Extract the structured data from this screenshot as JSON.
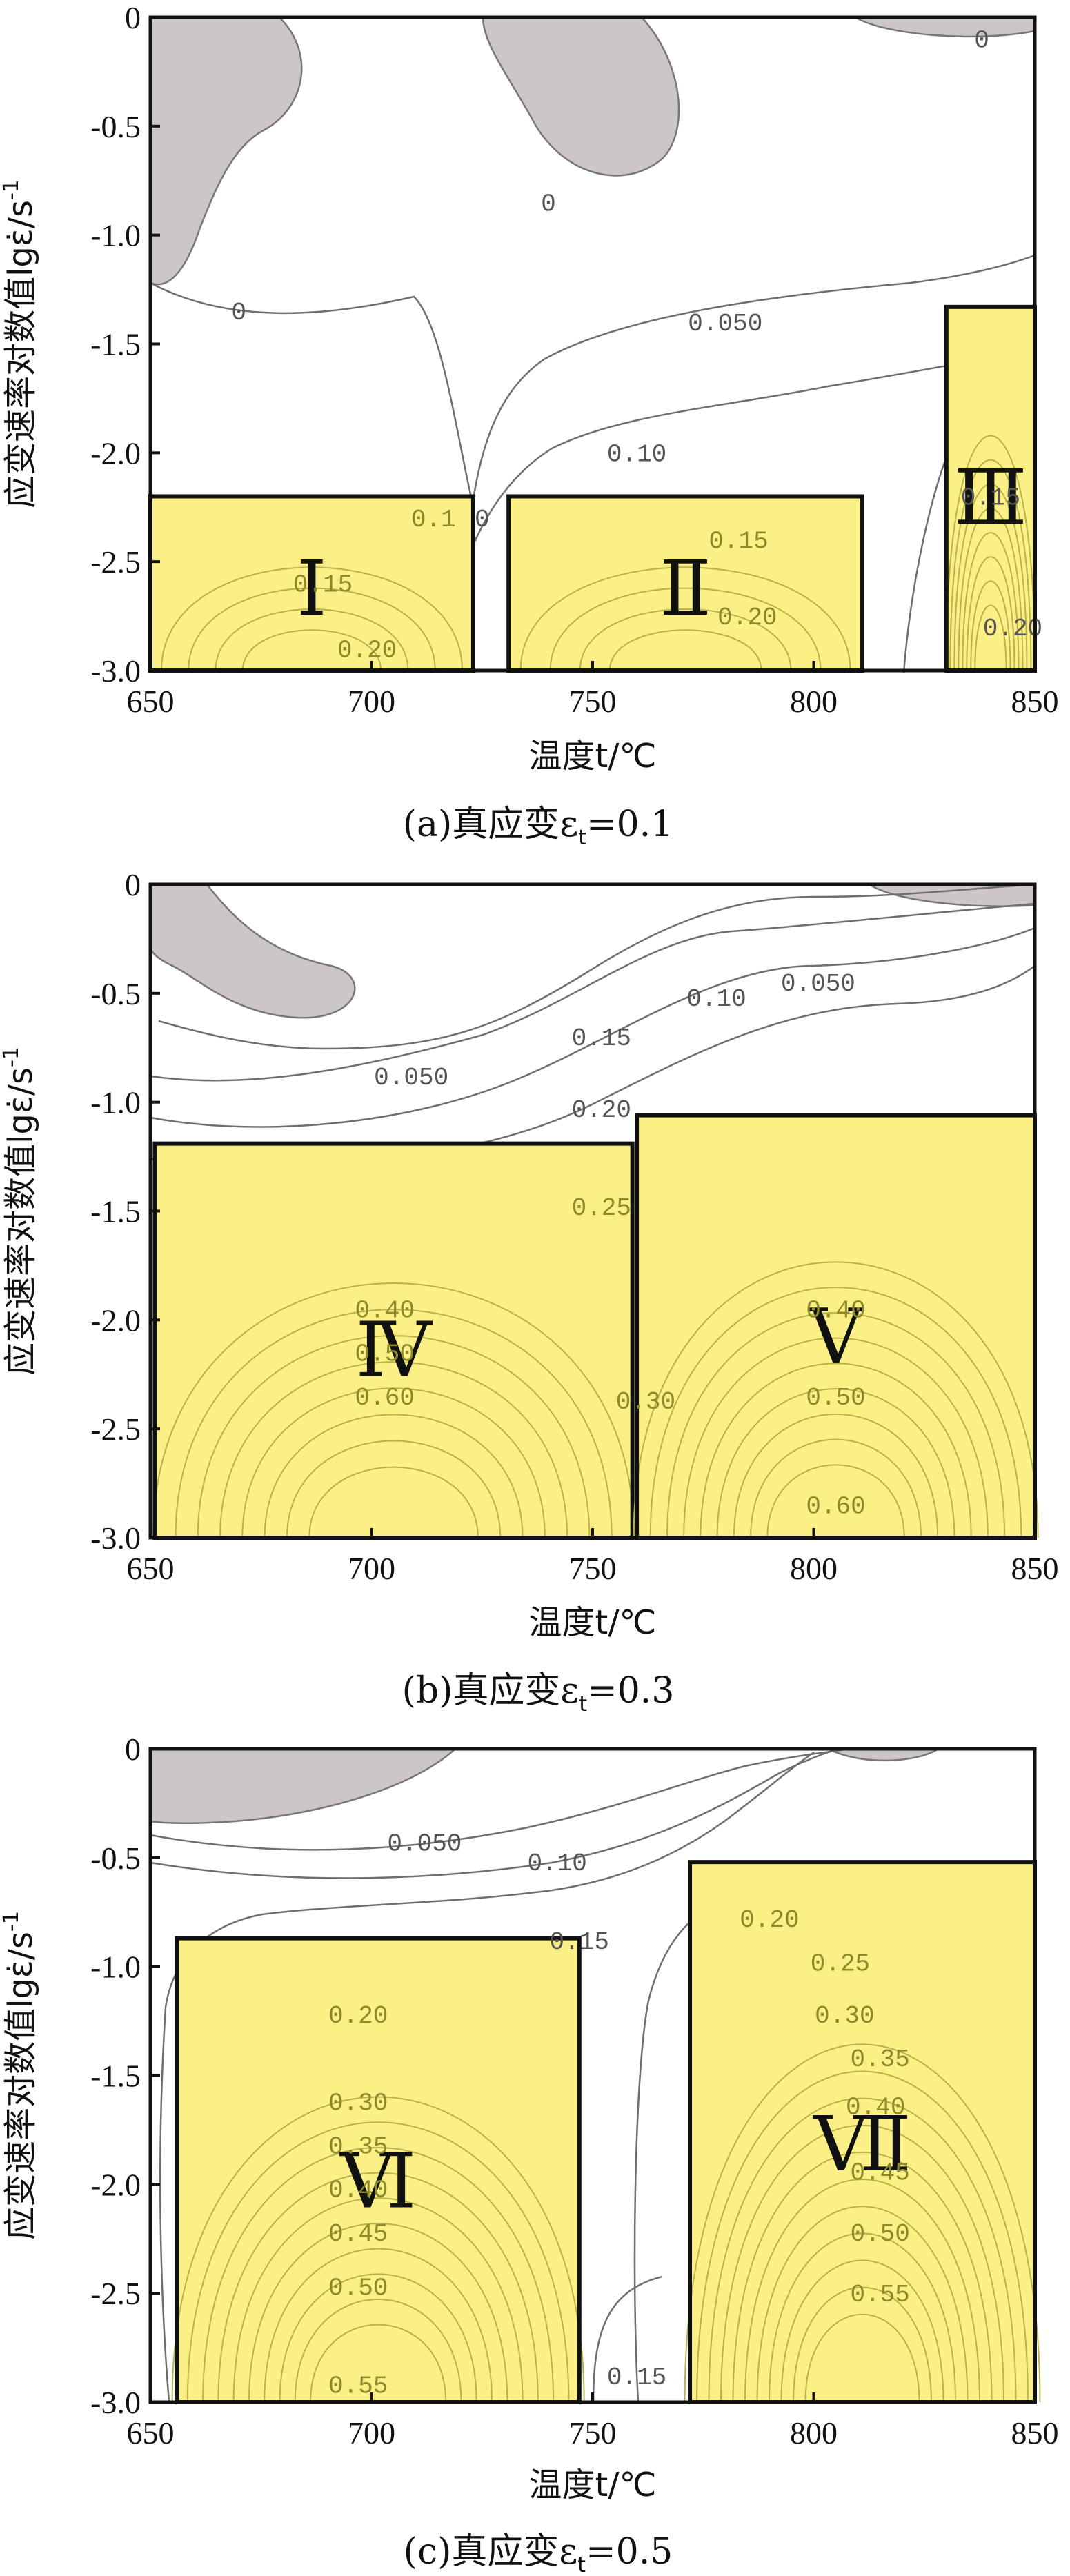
{
  "chart_data": [
    {
      "type": "contour",
      "caption": "(a)真应变ε",
      "caption_sub": "t",
      "caption_value": "=0.1",
      "xlabel": "温度t/℃",
      "ylabel": "应变速率对数值lgε̇/s",
      "ylabel_sup": "-1",
      "xlim": [
        650,
        850
      ],
      "ylim": [
        -3.0,
        0
      ],
      "xticks": [
        "650",
        "700",
        "750",
        "800",
        "850"
      ],
      "yticks": [
        "0",
        "-0.5",
        "-1.0",
        "-1.5",
        "-2.0",
        "-2.5",
        "-3.0"
      ],
      "contour_labels": [
        {
          "text": "0",
          "x": 838,
          "y": -0.1
        },
        {
          "text": "0",
          "x": 740,
          "y": -0.85
        },
        {
          "text": "0",
          "x": 670,
          "y": -1.35
        },
        {
          "text": "0",
          "x": 725,
          "y": -2.3
        },
        {
          "text": "0.050",
          "x": 780,
          "y": -1.4
        },
        {
          "text": "0.10",
          "x": 760,
          "y": -2.0
        },
        {
          "text": "0.15",
          "x": 840,
          "y": -2.2
        },
        {
          "text": "0.20",
          "x": 845,
          "y": -2.8
        },
        {
          "text": "0.1",
          "x": 714,
          "y": -2.3,
          "region": true
        },
        {
          "text": "0.15",
          "x": 689,
          "y": -2.6,
          "region": true
        },
        {
          "text": "0.20",
          "x": 699,
          "y": -2.9,
          "region": true
        },
        {
          "text": "0.15",
          "x": 783,
          "y": -2.4,
          "region": true
        },
        {
          "text": "0.20",
          "x": 785,
          "y": -2.75,
          "region": true
        }
      ],
      "regions": [
        {
          "label": "Ⅰ",
          "x": [
            650,
            723
          ],
          "y": [
            -3.0,
            -2.2
          ]
        },
        {
          "label": "Ⅱ",
          "x": [
            731,
            811
          ],
          "y": [
            -3.0,
            -2.2
          ]
        },
        {
          "label": "Ⅲ",
          "x": [
            830,
            850
          ],
          "y": [
            -3.0,
            -1.33
          ]
        }
      ]
    },
    {
      "type": "contour",
      "caption": "(b)真应变ε",
      "caption_sub": "t",
      "caption_value": "=0.3",
      "xlabel": "温度t/℃",
      "ylabel": "应变速率对数值lgε̇/s",
      "ylabel_sup": "-1",
      "xlim": [
        650,
        850
      ],
      "ylim": [
        -3.0,
        0
      ],
      "xticks": [
        "650",
        "700",
        "750",
        "800",
        "850"
      ],
      "yticks": [
        "0",
        "-0.5",
        "-1.0",
        "-1.5",
        "-2.0",
        "-2.5",
        "-3.0"
      ],
      "contour_labels": [
        {
          "text": "0.050",
          "x": 801,
          "y": -0.45
        },
        {
          "text": "0.10",
          "x": 778,
          "y": -0.52
        },
        {
          "text": "0.15",
          "x": 752,
          "y": -0.7
        },
        {
          "text": "0.050",
          "x": 709,
          "y": -0.88
        },
        {
          "text": "0.20",
          "x": 752,
          "y": -1.03
        },
        {
          "text": "0.25",
          "x": 752,
          "y": -1.48,
          "region": true
        },
        {
          "text": "0.40",
          "x": 703,
          "y": -1.95,
          "region": true
        },
        {
          "text": "0.50",
          "x": 703,
          "y": -2.15,
          "region": true
        },
        {
          "text": "0.60",
          "x": 703,
          "y": -2.35,
          "region": true
        },
        {
          "text": "0.30",
          "x": 762,
          "y": -2.37,
          "region": true
        },
        {
          "text": "0.40",
          "x": 805,
          "y": -1.95,
          "region": true
        },
        {
          "text": "0.50",
          "x": 805,
          "y": -2.35,
          "region": true
        },
        {
          "text": "0.60",
          "x": 805,
          "y": -2.85,
          "region": true
        }
      ],
      "regions": [
        {
          "label": "Ⅳ",
          "x": [
            651,
            759
          ],
          "y": [
            -3.0,
            -1.19
          ]
        },
        {
          "label": "Ⅴ",
          "x": [
            760,
            850
          ],
          "y": [
            -3.0,
            -1.06
          ]
        }
      ]
    },
    {
      "type": "contour",
      "caption": "(c)真应变ε",
      "caption_sub": "t",
      "caption_value": "=0.5",
      "xlabel": "温度t/℃",
      "ylabel": "应变速率对数值lgε̇/s",
      "ylabel_sup": "-1",
      "xlim": [
        650,
        850
      ],
      "ylim": [
        -3.0,
        0
      ],
      "xticks": [
        "650",
        "700",
        "750",
        "800",
        "850"
      ],
      "yticks": [
        "0",
        "-0.5",
        "-1.0",
        "-1.5",
        "-2.0",
        "-2.5",
        "-3.0"
      ],
      "contour_labels": [
        {
          "text": "0.050",
          "x": 712,
          "y": -0.43
        },
        {
          "text": "0.10",
          "x": 742,
          "y": -0.52
        },
        {
          "text": "0.15",
          "x": 747,
          "y": -0.88
        },
        {
          "text": "0.15",
          "x": 760,
          "y": -2.88
        },
        {
          "text": "0.20",
          "x": 697,
          "y": -1.22,
          "region": true
        },
        {
          "text": "0.30",
          "x": 697,
          "y": -1.62,
          "region": true
        },
        {
          "text": "0.35",
          "x": 697,
          "y": -1.82,
          "region": true
        },
        {
          "text": "0.40",
          "x": 697,
          "y": -2.02,
          "region": true
        },
        {
          "text": "0.45",
          "x": 697,
          "y": -2.22,
          "region": true
        },
        {
          "text": "0.50",
          "x": 697,
          "y": -2.47,
          "region": true
        },
        {
          "text": "0.55",
          "x": 697,
          "y": -2.92,
          "region": true
        },
        {
          "text": "0.20",
          "x": 790,
          "y": -0.78,
          "region": true
        },
        {
          "text": "0.25",
          "x": 806,
          "y": -0.98,
          "region": true
        },
        {
          "text": "0.30",
          "x": 807,
          "y": -1.22,
          "region": true
        },
        {
          "text": "0.35",
          "x": 815,
          "y": -1.42,
          "region": true
        },
        {
          "text": "0.40",
          "x": 814,
          "y": -1.64,
          "region": true
        },
        {
          "text": "0.45",
          "x": 815,
          "y": -1.94,
          "region": true
        },
        {
          "text": "0.50",
          "x": 815,
          "y": -2.22,
          "region": true
        },
        {
          "text": "0.55",
          "x": 815,
          "y": -2.5,
          "region": true
        }
      ],
      "regions": [
        {
          "label": "Ⅵ",
          "x": [
            656,
            747
          ],
          "y": [
            -3.0,
            -0.87
          ]
        },
        {
          "label": "Ⅶ",
          "x": [
            772,
            850
          ],
          "y": [
            -3.0,
            -0.52
          ]
        }
      ]
    }
  ]
}
